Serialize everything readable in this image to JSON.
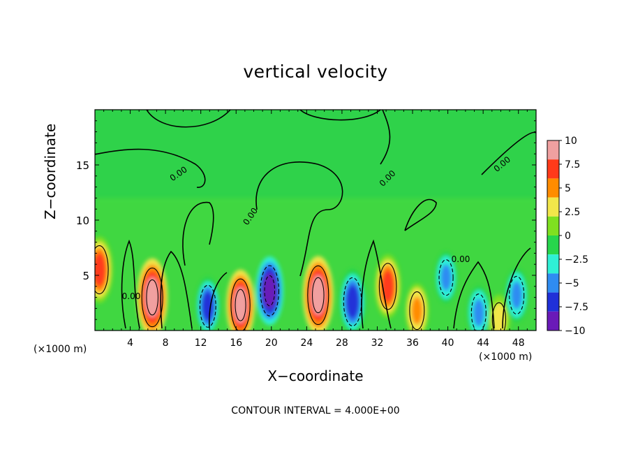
{
  "chart_data": {
    "type": "heatmap",
    "title": "vertical velocity",
    "xlabel": "X−coordinate",
    "ylabel": "Z−coordinate",
    "x_unit_label": "(×1000 m)",
    "footer": "CONTOUR INTERVAL = 4.000E+00",
    "xlim": [
      0,
      50
    ],
    "ylim": [
      0,
      20
    ],
    "x_ticks": [
      4,
      8,
      12,
      16,
      20,
      24,
      28,
      32,
      36,
      40,
      44,
      48
    ],
    "y_ticks": [
      5,
      10,
      15
    ],
    "colorbar": {
      "range": [
        -10,
        10
      ],
      "ticks": [
        "10",
        "7.5",
        "5",
        "2.5",
        "0",
        "−2.5",
        "−5",
        "−7.5",
        "−10"
      ],
      "colors": [
        "#f0a0a0",
        "#ff3a1a",
        "#ff8c00",
        "#f2e64a",
        "#7fe020",
        "#27d64c",
        "#2ff0d6",
        "#2f8cf2",
        "#2030d8",
        "#6a1ab8"
      ]
    },
    "contour_label": "0.00",
    "features": [
      {
        "x": 0.5,
        "z": 5.5,
        "w": 7.5
      },
      {
        "x": 6.5,
        "z": 3.0,
        "w": 10.0
      },
      {
        "x": 12.8,
        "z": 2.2,
        "w": -6.0
      },
      {
        "x": 16.5,
        "z": 2.3,
        "w": 8.5
      },
      {
        "x": 19.8,
        "z": 3.6,
        "w": -8.0
      },
      {
        "x": 25.3,
        "z": 3.2,
        "w": 10.0
      },
      {
        "x": 29.2,
        "z": 2.6,
        "w": -7.5
      },
      {
        "x": 33.2,
        "z": 4.0,
        "w": 7.0
      },
      {
        "x": 36.5,
        "z": 1.8,
        "w": 5.0
      },
      {
        "x": 39.8,
        "z": 4.8,
        "w": -4.5
      },
      {
        "x": 43.5,
        "z": 1.6,
        "w": -5.0
      },
      {
        "x": 45.8,
        "z": 1.0,
        "w": 4.0
      },
      {
        "x": 47.8,
        "z": 3.2,
        "w": -5.0
      }
    ]
  }
}
